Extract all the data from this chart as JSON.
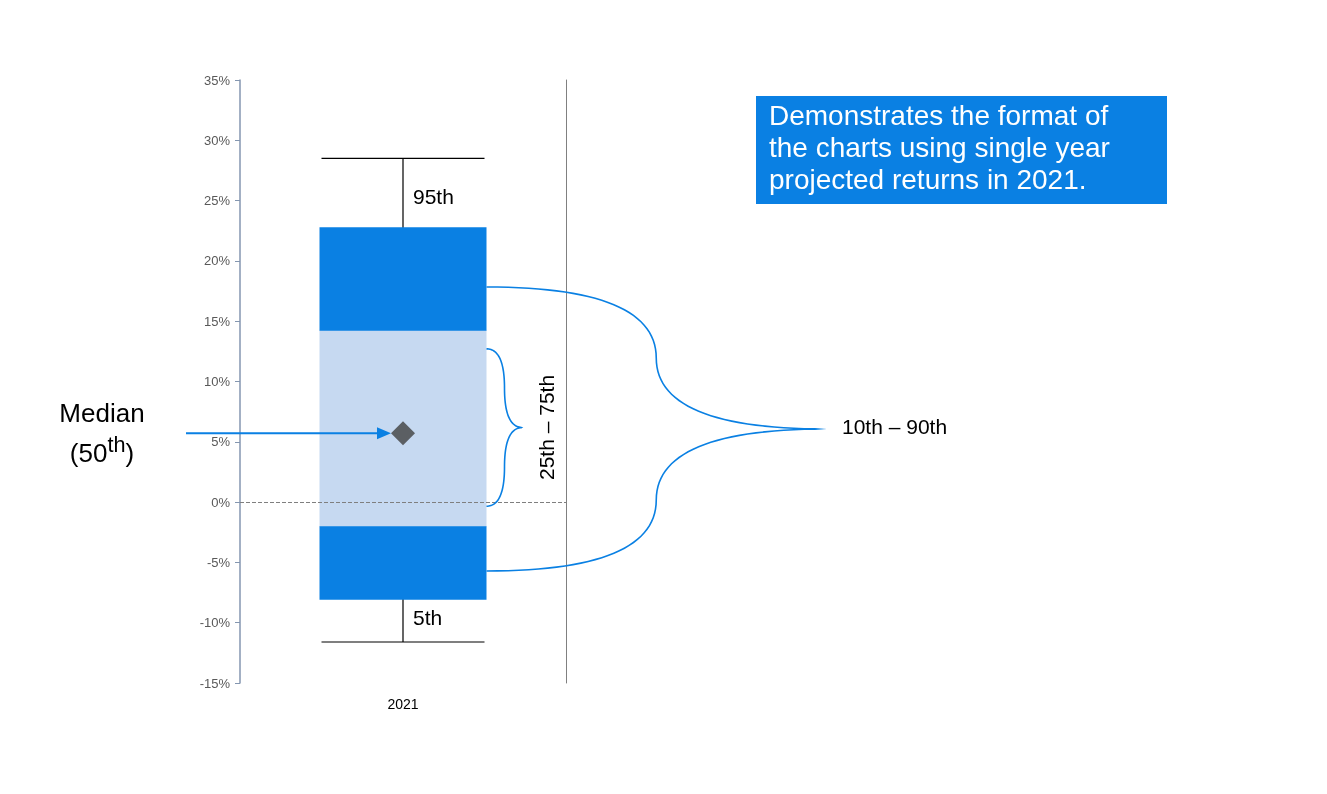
{
  "chart_data": {
    "type": "box",
    "categories": [
      "2021"
    ],
    "ylim": [
      -15,
      35
    ],
    "yticks": [
      {
        "value": -15,
        "label": "-15%"
      },
      {
        "value": -10,
        "label": "-10%"
      },
      {
        "value": -5,
        "label": "-5%"
      },
      {
        "value": 0,
        "label": "0%"
      },
      {
        "value": 5,
        "label": "5%"
      },
      {
        "value": 10,
        "label": "10%"
      },
      {
        "value": 15,
        "label": "15%"
      },
      {
        "value": 20,
        "label": "20%"
      },
      {
        "value": 25,
        "label": "25%"
      },
      {
        "value": 30,
        "label": "30%"
      },
      {
        "value": 35,
        "label": "35%"
      }
    ],
    "grid": false,
    "series": [
      {
        "color": "#c6d9f1",
        "boxes": [
          {
            "low": -11.6,
            "q1": -2.0,
            "median": 5.7,
            "q3": 14.2,
            "high": 28.5
          }
        ]
      },
      {
        "type": "bar",
        "color": "#0a80e3",
        "base": [
          -8.1
        ],
        "values": [
          6.1
        ]
      },
      {
        "type": "bar",
        "color": "#0a80e3",
        "base": [
          14.2
        ],
        "values": [
          8.6
        ]
      },
      {
        "type": "scatter",
        "values": [
          5.7
        ],
        "color": "#404040",
        "marker": "diamond"
      }
    ],
    "ref_lines": [
      {
        "axis": "y",
        "value": 0,
        "color": "#7f7f7f",
        "line_style": "dashed"
      }
    ],
    "annotations": [
      "Demonstrates the format of the charts using single year projected returns in 2021.",
      "95th",
      "5th",
      "25th – 75th",
      "10th – 90th",
      "Median (50$^{th}$)"
    ]
  }
}
